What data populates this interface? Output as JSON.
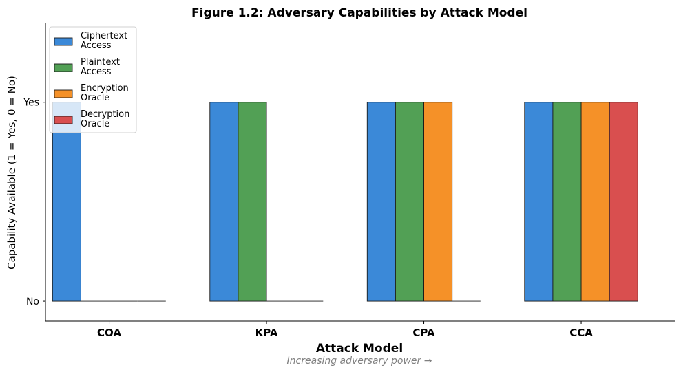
{
  "chart_data": {
    "type": "bar",
    "title": "Figure 1.2: Adversary Capabilities by Attack Model",
    "xlabel": "Attack Model",
    "ylabel": "Capability Available (1 = Yes, 0 = No)",
    "x_subtitle": "Increasing adversary power →",
    "categories": [
      "COA",
      "KPA",
      "CPA",
      "CCA"
    ],
    "y_ticks": [
      {
        "value": 0,
        "label": "No"
      },
      {
        "value": 1,
        "label": "Yes"
      }
    ],
    "ylim": [
      -0.1,
      1.4
    ],
    "series": [
      {
        "name": "Ciphertext Access",
        "legend_lines": [
          "Ciphertext",
          "Access"
        ],
        "color": "#3b89d8",
        "values": [
          1,
          1,
          1,
          1
        ]
      },
      {
        "name": "Plaintext Access",
        "legend_lines": [
          "Plaintext",
          "Access"
        ],
        "color": "#52a055",
        "values": [
          0,
          1,
          1,
          1
        ]
      },
      {
        "name": "Encryption Oracle",
        "legend_lines": [
          "Encryption",
          "Oracle"
        ],
        "color": "#f59128",
        "values": [
          0,
          0,
          1,
          1
        ]
      },
      {
        "name": "Decryption Oracle",
        "legend_lines": [
          "Decryption",
          "Oracle"
        ],
        "color": "#d94f4f",
        "values": [
          0,
          0,
          0,
          1
        ]
      }
    ],
    "legend_position": "top-left",
    "grid": false
  }
}
